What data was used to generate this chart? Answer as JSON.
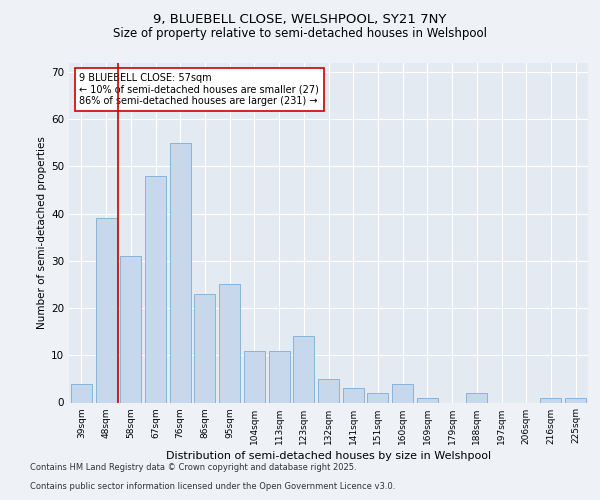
{
  "title1": "9, BLUEBELL CLOSE, WELSHPOOL, SY21 7NY",
  "title2": "Size of property relative to semi-detached houses in Welshpool",
  "xlabel": "Distribution of semi-detached houses by size in Welshpool",
  "ylabel": "Number of semi-detached properties",
  "categories": [
    "39sqm",
    "48sqm",
    "58sqm",
    "67sqm",
    "76sqm",
    "86sqm",
    "95sqm",
    "104sqm",
    "113sqm",
    "123sqm",
    "132sqm",
    "141sqm",
    "151sqm",
    "160sqm",
    "169sqm",
    "179sqm",
    "188sqm",
    "197sqm",
    "206sqm",
    "216sqm",
    "225sqm"
  ],
  "values": [
    4,
    39,
    31,
    48,
    55,
    23,
    25,
    11,
    11,
    14,
    5,
    3,
    2,
    4,
    1,
    0,
    2,
    0,
    0,
    1,
    1
  ],
  "bar_color": "#c8d8ec",
  "bar_edge_color": "#7aadd4",
  "annotation_text1": "9 BLUEBELL CLOSE: 57sqm",
  "annotation_text2": "← 10% of semi-detached houses are smaller (27)",
  "annotation_text3": "86% of semi-detached houses are larger (231) →",
  "red_line_color": "#cc0000",
  "annotation_box_edge_color": "#cc0000",
  "ylim": [
    0,
    72
  ],
  "yticks": [
    0,
    10,
    20,
    30,
    40,
    50,
    60,
    70
  ],
  "footer1": "Contains HM Land Registry data © Crown copyright and database right 2025.",
  "footer2": "Contains public sector information licensed under the Open Government Licence v3.0.",
  "background_color": "#eef2f7",
  "plot_bg_color": "#e4eaf2"
}
